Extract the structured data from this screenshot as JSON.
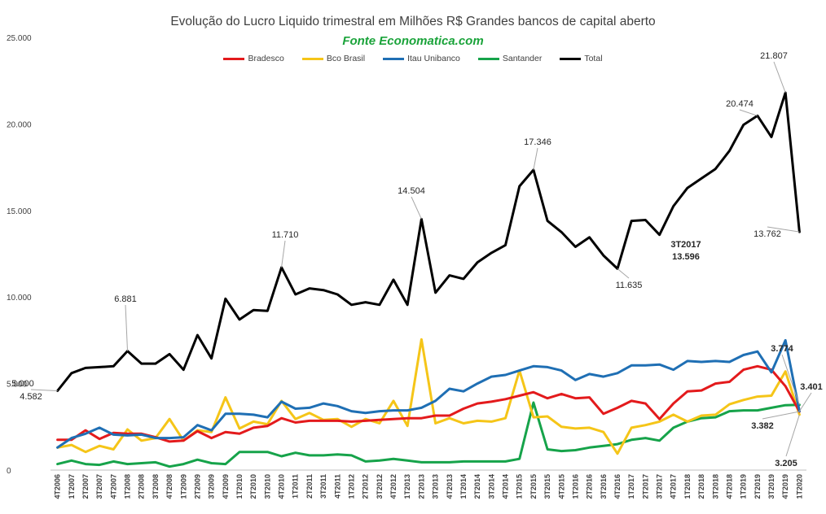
{
  "chart_data": {
    "type": "line",
    "title": "Evolução do Lucro Liquido trimestral em Milhões R$ Grandes bancos de capital aberto",
    "subtitle": "Fonte Economatica.com",
    "xlabel": "",
    "ylabel": "",
    "ylim": [
      0,
      25000
    ],
    "yticks": [
      0,
      5000,
      10000,
      15000,
      20000,
      25000
    ],
    "ytick_labels": [
      "0",
      "5.000",
      "10.000",
      "15.000",
      "20.000",
      "25.000"
    ],
    "grid": false,
    "legend_position": "top-center",
    "categories": [
      "4T2006",
      "1T2007",
      "2T2007",
      "3T2007",
      "4T2007",
      "1T2008",
      "2T2008",
      "3T2008",
      "4T2008",
      "1T2009",
      "2T2009",
      "3T2009",
      "4T2009",
      "1T2010",
      "2T2010",
      "3T2010",
      "4T2010",
      "1T2011",
      "2T2011",
      "3T2011",
      "4T2011",
      "1T2012",
      "2T2012",
      "3T2012",
      "4T2012",
      "1T2013",
      "2T2013",
      "3T2013",
      "4T2013",
      "1T2014",
      "2T2014",
      "3T2014",
      "4T2014",
      "1T2015",
      "2T2015",
      "3T2015",
      "4T2015",
      "1T2016",
      "2T2016",
      "3T2016",
      "4T2016",
      "1T2017",
      "2T2017",
      "3T2017",
      "4T2017",
      "1T2018",
      "2T2018",
      "3T2018",
      "4T2018",
      "1T2019",
      "2T2019",
      "3T2019",
      "4T2019",
      "1T2020"
    ],
    "series": [
      {
        "name": "Bradesco",
        "color": "#e31a1c",
        "values": [
          1750,
          1750,
          2300,
          1800,
          2150,
          2100,
          2100,
          1900,
          1650,
          1700,
          2250,
          1850,
          2200,
          2100,
          2450,
          2550,
          3000,
          2750,
          2850,
          2850,
          2850,
          2800,
          2850,
          2900,
          2950,
          3000,
          3000,
          3150,
          3150,
          3550,
          3850,
          3950,
          4100,
          4300,
          4500,
          4150,
          4400,
          4150,
          4200,
          3250,
          3600,
          4000,
          3850,
          2950,
          3850,
          4550,
          4600,
          5000,
          5100,
          5800,
          6000,
          5800,
          4850,
          3382
        ]
      },
      {
        "name": "Bco Brasil",
        "color": "#f5c518",
        "values": [
          1300,
          1450,
          1050,
          1400,
          1200,
          2350,
          1700,
          1850,
          2950,
          1700,
          2300,
          2200,
          4200,
          2400,
          2800,
          2650,
          4000,
          2950,
          3300,
          2900,
          2950,
          2500,
          2950,
          2700,
          4000,
          2550,
          7550,
          2700,
          3000,
          2700,
          2850,
          2800,
          3000,
          5750,
          3050,
          3100,
          2500,
          2400,
          2450,
          2200,
          950,
          2450,
          2600,
          2800,
          3200,
          2800,
          3150,
          3200,
          3800,
          4050,
          4250,
          4300,
          5700,
          3205
        ]
      },
      {
        "name": "Itau Unibanco",
        "color": "#1f6fb4",
        "values": [
          1300,
          1850,
          2100,
          2450,
          2050,
          2000,
          2050,
          1850,
          1850,
          1900,
          2600,
          2300,
          3250,
          3250,
          3200,
          3050,
          3950,
          3550,
          3600,
          3850,
          3700,
          3400,
          3300,
          3400,
          3450,
          3450,
          3600,
          4000,
          4700,
          4550,
          5000,
          5400,
          5500,
          5750,
          6000,
          5950,
          5750,
          5200,
          5550,
          5400,
          5600,
          6050,
          6050,
          6100,
          5800,
          6300,
          6250,
          6300,
          6250,
          6650,
          6850,
          5650,
          7500,
          3401
        ]
      },
      {
        "name": "Santander",
        "color": "#16a34a",
        "values": [
          350,
          550,
          350,
          300,
          500,
          350,
          400,
          450,
          200,
          350,
          600,
          400,
          350,
          1050,
          1050,
          1050,
          800,
          1000,
          850,
          850,
          900,
          850,
          500,
          550,
          650,
          550,
          450,
          450,
          450,
          500,
          500,
          500,
          500,
          650,
          3900,
          1200,
          1100,
          1150,
          1300,
          1400,
          1500,
          1750,
          1850,
          1700,
          2450,
          2800,
          3000,
          3050,
          3400,
          3450,
          3450,
          3600,
          3750,
          3774
        ]
      },
      {
        "name": "Total",
        "color": "#000000",
        "values": [
          4582,
          5600,
          5900,
          5950,
          6000,
          6881,
          6150,
          6150,
          6700,
          5800,
          7800,
          6450,
          9900,
          8700,
          9250,
          9200,
          11710,
          10150,
          10500,
          10400,
          10150,
          9550,
          9700,
          9550,
          11000,
          9550,
          14504,
          10250,
          11250,
          11050,
          12000,
          12550,
          13000,
          16400,
          17346,
          14400,
          13750,
          12900,
          13450,
          12400,
          11635,
          14400,
          14450,
          13596,
          15250,
          16300,
          16850,
          17400,
          18450,
          19950,
          20474,
          19250,
          21807,
          13762
        ]
      }
    ],
    "annotations": [
      {
        "text": "4.582",
        "color": "#262626"
      },
      {
        "text": "6.881",
        "color": "#262626"
      },
      {
        "text": "11.710",
        "color": "#262626"
      },
      {
        "text": "14.504",
        "color": "#262626"
      },
      {
        "text": "17.346",
        "color": "#262626"
      },
      {
        "text": "11.635",
        "color": "#262626"
      },
      {
        "text": "3T2017",
        "color": "#e31a1c"
      },
      {
        "text": "13.596",
        "color": "#e31a1c"
      },
      {
        "text": "20.474",
        "color": "#262626"
      },
      {
        "text": "21.807",
        "color": "#262626"
      },
      {
        "text": "13.762",
        "color": "#262626"
      },
      {
        "text": "3.774",
        "color": "#16a34a"
      },
      {
        "text": "3.401",
        "color": "#1f6fb4"
      },
      {
        "text": "3.382",
        "color": "#e31a1c"
      },
      {
        "text": "3.205",
        "color": "#e6b800"
      },
      {
        "text": "5.000",
        "color": "#262626"
      }
    ]
  }
}
